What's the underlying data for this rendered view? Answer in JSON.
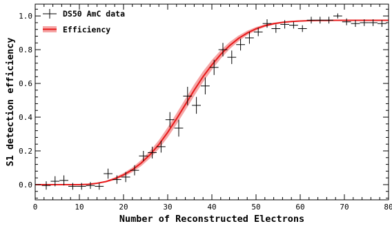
{
  "chart_data": {
    "type": "scatter",
    "title": "",
    "xlabel": "Number of Reconstructed Electrons",
    "ylabel": "S1 detection efficiency",
    "xlim": [
      0,
      80
    ],
    "ylim": [
      -0.09,
      1.07
    ],
    "xticks": [
      0,
      10,
      20,
      30,
      40,
      50,
      60,
      70,
      80
    ],
    "xtick_labels": [
      "0",
      "10",
      "20",
      "30",
      "40",
      "50",
      "60",
      "70",
      "80"
    ],
    "yticks": [
      0.0,
      0.2,
      0.4,
      0.6,
      0.8,
      1.0
    ],
    "ytick_labels": [
      "0.0",
      "0.2",
      "0.4",
      "0.6",
      "0.8",
      "1.0"
    ],
    "grid": false,
    "legend_position": "top-left",
    "legend": [
      {
        "label": "DS50 AmC data",
        "kind": "errorbar-marker"
      },
      {
        "label": "Efficiency",
        "kind": "line-with-band"
      }
    ],
    "series": [
      {
        "name": "DS50 AmC data",
        "kind": "points",
        "color": "#000000",
        "x": [
          2.5,
          4.5,
          6.5,
          8.5,
          10.5,
          12.5,
          14.5,
          16.5,
          18.5,
          20.5,
          22.5,
          24.5,
          26.5,
          28.5,
          30.5,
          32.5,
          34.5,
          36.5,
          38.5,
          40.5,
          42.5,
          44.5,
          46.5,
          48.5,
          50.5,
          52.5,
          54.5,
          56.5,
          58.5,
          60.5,
          62.5,
          64.5,
          66.5,
          68.5,
          70.5,
          72.5,
          74.5,
          76.5,
          78.5
        ],
        "y": [
          -0.005,
          0.02,
          0.025,
          -0.01,
          -0.01,
          -0.005,
          -0.01,
          0.065,
          0.03,
          0.045,
          0.085,
          0.17,
          0.19,
          0.225,
          0.385,
          0.335,
          0.525,
          0.47,
          0.585,
          0.695,
          0.8,
          0.755,
          0.83,
          0.87,
          0.905,
          0.955,
          0.925,
          0.95,
          0.945,
          0.925,
          0.975,
          0.975,
          0.975,
          1.0,
          0.965,
          0.955,
          0.96,
          0.96,
          0.955
        ],
        "yerr": [
          0.025,
          0.03,
          0.03,
          0.02,
          0.02,
          0.02,
          0.02,
          0.03,
          0.025,
          0.03,
          0.03,
          0.03,
          0.035,
          0.035,
          0.045,
          0.05,
          0.055,
          0.05,
          0.05,
          0.045,
          0.04,
          0.04,
          0.035,
          0.035,
          0.025,
          0.025,
          0.025,
          0.025,
          0.02,
          0.02,
          0.02,
          0.02,
          0.02,
          0.015,
          0.02,
          0.02,
          0.02,
          0.02,
          0.02
        ],
        "xerr": 1.0
      },
      {
        "name": "Efficiency",
        "kind": "line",
        "color": "#e8191a",
        "band_color": "#f5a6a6",
        "x": [
          0,
          2,
          4,
          6,
          8,
          10,
          12,
          14,
          16,
          18,
          20,
          22,
          24,
          26,
          28,
          30,
          32,
          34,
          36,
          38,
          40,
          42,
          44,
          46,
          48,
          50,
          52,
          54,
          56,
          58,
          60,
          62,
          64,
          66,
          68,
          70,
          72,
          74,
          76,
          78,
          80
        ],
        "y": [
          0.0,
          0.0,
          0.0,
          0.0,
          0.0,
          0.0,
          0.002,
          0.008,
          0.018,
          0.035,
          0.058,
          0.088,
          0.128,
          0.178,
          0.238,
          0.31,
          0.39,
          0.475,
          0.56,
          0.64,
          0.71,
          0.772,
          0.824,
          0.866,
          0.899,
          0.924,
          0.942,
          0.954,
          0.962,
          0.967,
          0.97,
          0.972,
          0.973,
          0.973,
          0.974,
          0.974,
          0.974,
          0.974,
          0.974,
          0.974,
          0.974
        ],
        "band_halfwidth": [
          0.0,
          0.0,
          0.0,
          0.0,
          0.0,
          0.0,
          0.001,
          0.003,
          0.005,
          0.008,
          0.011,
          0.014,
          0.018,
          0.022,
          0.026,
          0.03,
          0.033,
          0.034,
          0.034,
          0.032,
          0.029,
          0.025,
          0.021,
          0.017,
          0.013,
          0.01,
          0.008,
          0.006,
          0.005,
          0.004,
          0.004,
          0.003,
          0.003,
          0.003,
          0.003,
          0.003,
          0.003,
          0.003,
          0.003,
          0.003,
          0.003
        ]
      }
    ]
  }
}
